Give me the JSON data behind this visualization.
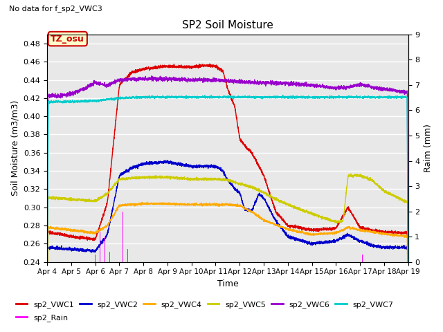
{
  "title": "SP2 Soil Moisture",
  "subtitle": "No data for f_sp2_VWC3",
  "ylabel_left": "Soil Moisture (m3/m3)",
  "ylabel_right": "Raim (mm)",
  "xlabel": "Time",
  "tz_label": "TZ_osu",
  "ylim_left": [
    0.24,
    0.49
  ],
  "ylim_right": [
    0.0,
    9.0
  ],
  "yticks_left": [
    0.24,
    0.26,
    0.28,
    0.3,
    0.32,
    0.34,
    0.36,
    0.38,
    0.4,
    0.42,
    0.44,
    0.46,
    0.48
  ],
  "yticks_right": [
    0.0,
    1.0,
    2.0,
    3.0,
    4.0,
    5.0,
    6.0,
    7.0,
    8.0,
    9.0
  ],
  "colors": {
    "sp2_VWC1": "#dd0000",
    "sp2_VWC2": "#0000cc",
    "sp2_VWC4": "#ffaa00",
    "sp2_VWC5": "#cccc00",
    "sp2_VWC6": "#9900cc",
    "sp2_VWC7": "#00cccc",
    "sp2_Rain": "#ff00ff"
  },
  "background_color": "#e8e8e8",
  "grid_color": "#ffffff",
  "date_labels": [
    "Apr 4",
    "Apr 5",
    "Apr 6",
    "Apr 7",
    "Apr 8",
    "Apr 9",
    "Apr 10",
    "Apr 11",
    "Apr 12",
    "Apr 13",
    "Apr 14",
    "Apr 15",
    "Apr 16",
    "Apr 17",
    "Apr 18",
    "Apr 19"
  ]
}
